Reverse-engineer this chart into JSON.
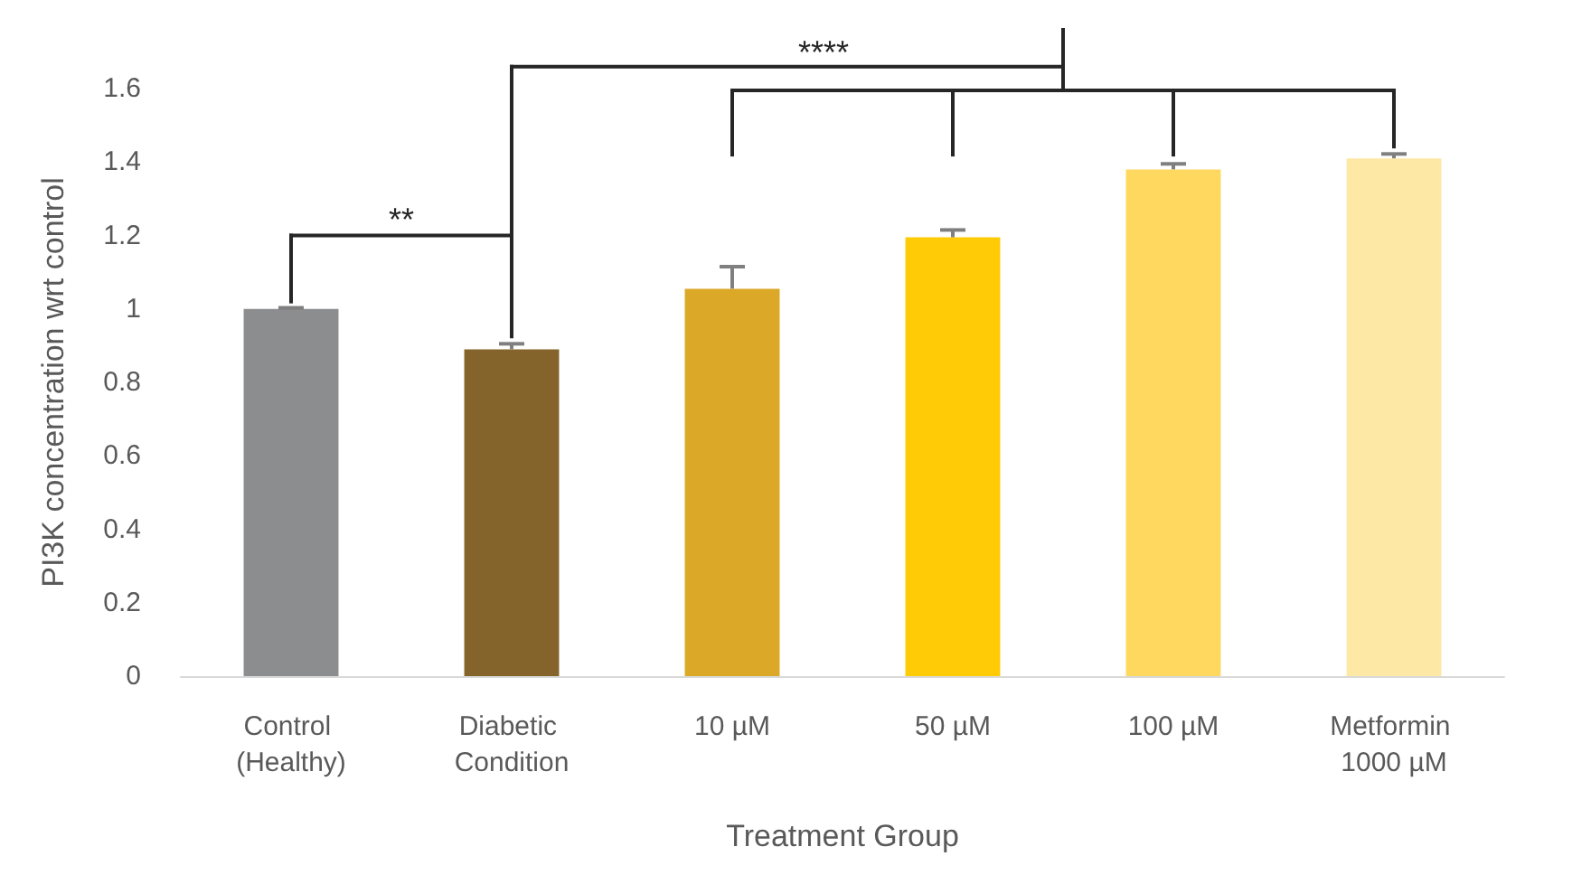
{
  "chart_data": {
    "type": "bar",
    "xlabel": "Treatment Group",
    "ylabel": "PI3K concentration wrt control",
    "categories": [
      "Control (Healthy)",
      "Diabetic Condition",
      "10 µM",
      "50 µM",
      "100 µM",
      "Metformin 1000 µM"
    ],
    "values": [
      1.0,
      0.89,
      1.055,
      1.195,
      1.38,
      1.41
    ],
    "errors": [
      0.003,
      0.015,
      0.06,
      0.02,
      0.015,
      0.012
    ],
    "colors": [
      "#8c8d8f",
      "#84642a",
      "#dba828",
      "#fecb06",
      "#fed85f",
      "#fee8a6"
    ],
    "ylim": [
      0,
      1.6
    ],
    "yticks": [
      0,
      0.2,
      0.4,
      0.6,
      0.8,
      1,
      1.2,
      1.4,
      1.6
    ],
    "annotations": [
      "**",
      "****"
    ]
  }
}
